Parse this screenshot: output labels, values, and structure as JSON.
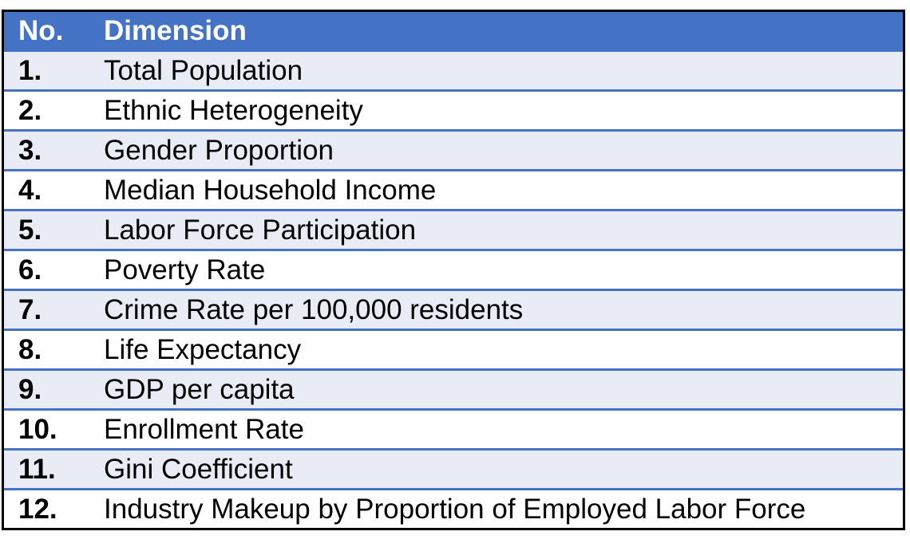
{
  "table": {
    "header": {
      "no": "No.",
      "dimension": "Dimension"
    },
    "rows": [
      {
        "no": "1.",
        "dimension": "Total Population"
      },
      {
        "no": "2.",
        "dimension": "Ethnic Heterogeneity"
      },
      {
        "no": "3.",
        "dimension": "Gender Proportion"
      },
      {
        "no": "4.",
        "dimension": "Median Household Income"
      },
      {
        "no": "5.",
        "dimension": "Labor Force Participation"
      },
      {
        "no": "6.",
        "dimension": "Poverty Rate"
      },
      {
        "no": "7.",
        "dimension": "Crime Rate per 100,000 residents"
      },
      {
        "no": "8.",
        "dimension": "Life Expectancy"
      },
      {
        "no": "9.",
        "dimension": "GDP per capita"
      },
      {
        "no": "10.",
        "dimension": "Enrollment Rate"
      },
      {
        "no": "11.",
        "dimension": "Gini Coefficient"
      },
      {
        "no": "12.",
        "dimension": "Industry Makeup by Proportion of Employed Labor Force"
      }
    ]
  },
  "colors": {
    "header_bg": "#4472c4",
    "header_text": "#ffffff",
    "band_row": "#e9ebf5",
    "plain_row": "#ffffff",
    "row_divider": "#4472c4",
    "outer_border": "#000000"
  }
}
